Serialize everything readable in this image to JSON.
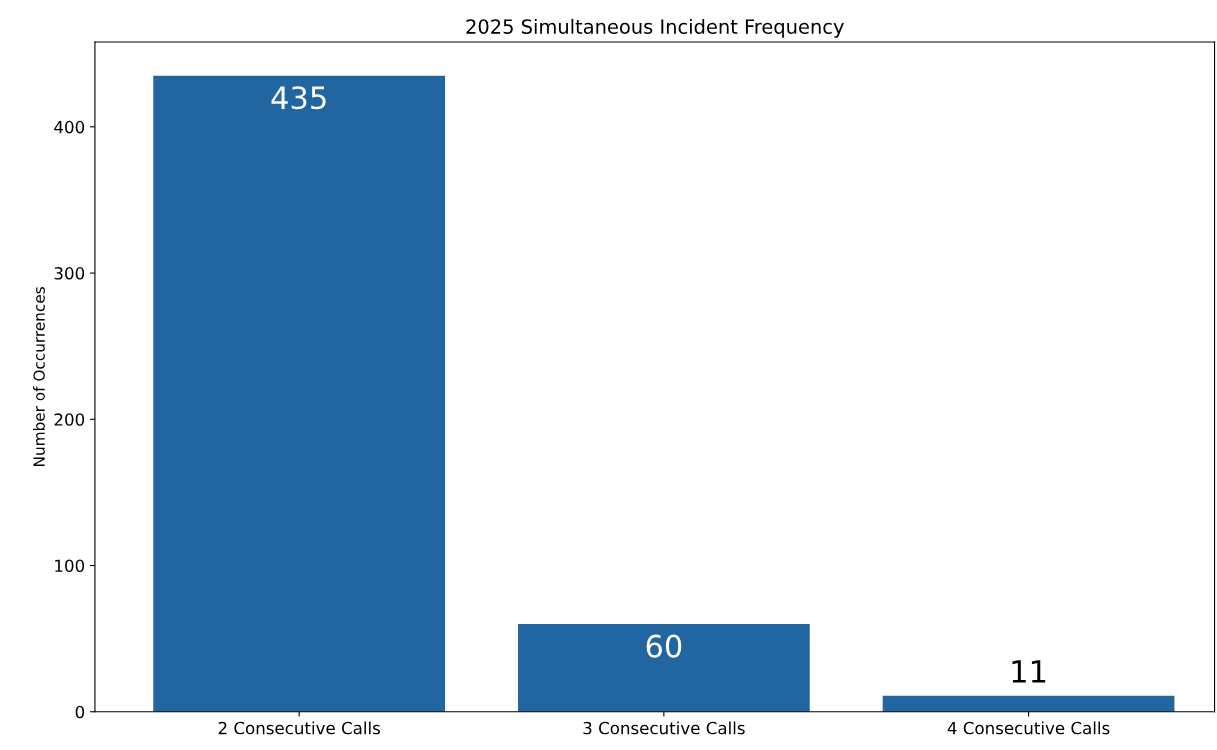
{
  "chart_data": {
    "type": "bar",
    "title": "2025 Simultaneous Incident Frequency",
    "ylabel": "Number of Occurrences",
    "categories": [
      "2 Consecutive Calls",
      "3 Consecutive Calls",
      "4 Consecutive Calls"
    ],
    "values": [
      435,
      60,
      11
    ],
    "color": "#2166a0",
    "ylim": [
      0,
      458
    ],
    "yticks": [
      0,
      100,
      200,
      300,
      400
    ],
    "data_labels": true,
    "grid": false,
    "legend": false
  }
}
